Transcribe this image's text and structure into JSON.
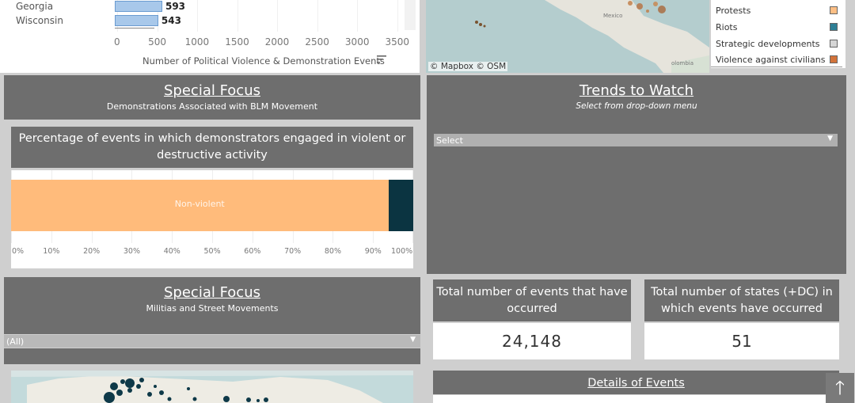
{
  "bar_chart": {
    "rows": [
      {
        "state": "Georgia",
        "value": 593
      },
      {
        "state": "Wisconsin",
        "value": 543
      }
    ],
    "ticks": [
      "0",
      "500",
      "1000",
      "1500",
      "2000",
      "2500",
      "3000",
      "3500"
    ],
    "axis_title": "Number of Political Violence & Demonstration Events",
    "xmax": 3500
  },
  "map_top": {
    "credit": "© Mapbox © OSM",
    "labels": [
      "Mexico",
      "olombia"
    ]
  },
  "legend": {
    "items": [
      {
        "label": "Protests",
        "color": "#fdbf85"
      },
      {
        "label": "Riots",
        "color": "#2e7f95"
      },
      {
        "label": "Strategic developments",
        "color": "#d6d6d6"
      },
      {
        "label": "Violence against civilians",
        "color": "#d2733a"
      }
    ]
  },
  "special_focus_1": {
    "title": "Special Focus",
    "subtitle": "Demonstrations Associated with BLM Movement",
    "chart_title": "Percentage of events in which demonstrators engaged in violent or destructive activity"
  },
  "chart_data": {
    "type": "bar",
    "orientation": "horizontal-stacked",
    "title": "Percentage of events in which demonstrators engaged in violent or destructive activity",
    "series": [
      {
        "name": "Non-violent",
        "values": [
          93.8
        ],
        "color": "#ffbb7b"
      },
      {
        "values": [
          6.2
        ],
        "color": "#0b3441"
      }
    ],
    "xlim": [
      0,
      100
    ],
    "ticks": [
      "0%",
      "10%",
      "20%",
      "30%",
      "40%",
      "50%",
      "60%",
      "70%",
      "80%",
      "90%",
      "100%"
    ]
  },
  "special_focus_2": {
    "title": "Special Focus",
    "subtitle": "Militias and Street Movements",
    "filter_value": "(All)"
  },
  "trends": {
    "title": "Trends to Watch",
    "subtitle": "Select from drop-down menu",
    "select_value": "Select"
  },
  "stats": {
    "events_label": "Total number of events that have occurred",
    "events_value": "24,148",
    "states_label": "Total number of states (+DC) in which events have occurred",
    "states_value": "51"
  },
  "details": {
    "title": "Details of Events"
  },
  "scroll_top": {
    "icon": "arrow-up-icon",
    "glyph": "🡑"
  }
}
